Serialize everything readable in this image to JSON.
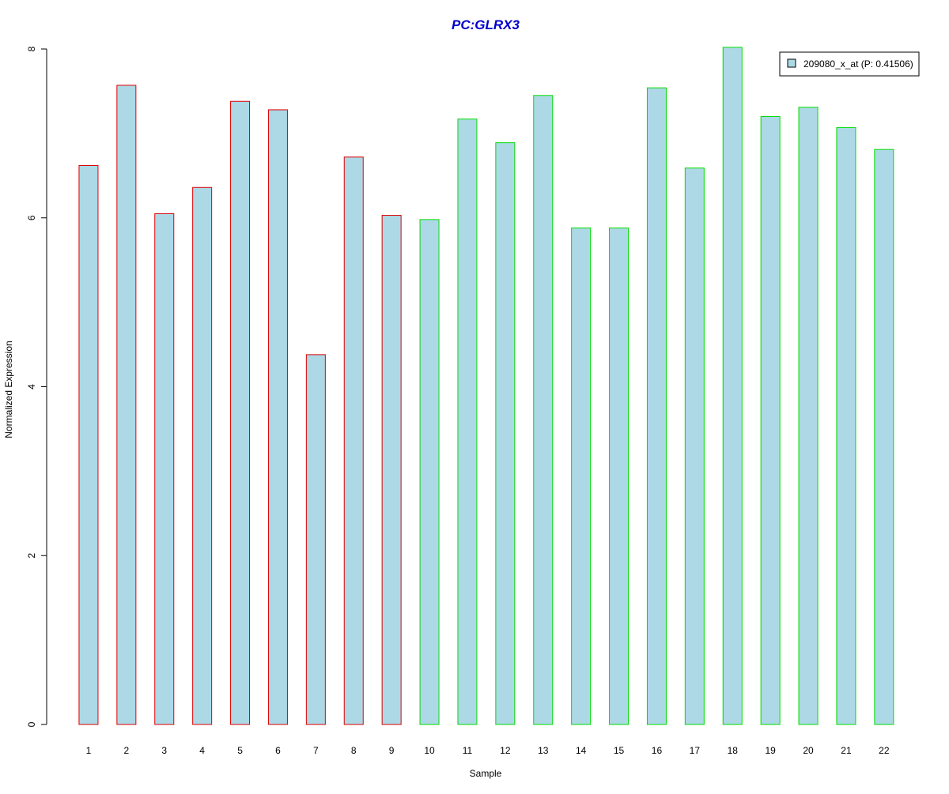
{
  "chart_data": {
    "type": "bar",
    "title": "PC:GLRX3",
    "xlabel": "Sample",
    "ylabel": "Normalized Expression",
    "categories": [
      "1",
      "2",
      "3",
      "4",
      "5",
      "6",
      "7",
      "8",
      "9",
      "10",
      "11",
      "12",
      "13",
      "14",
      "15",
      "16",
      "17",
      "18",
      "19",
      "20",
      "21",
      "22"
    ],
    "series": [
      {
        "name": "209080_x_at (P: 0.41506)",
        "values": [
          6.62,
          7.57,
          6.05,
          6.36,
          7.38,
          7.28,
          4.38,
          6.72,
          6.03,
          5.98,
          7.17,
          6.89,
          7.45,
          5.88,
          5.88,
          7.54,
          6.59,
          8.02,
          7.2,
          7.31,
          7.07,
          6.81
        ],
        "group": [
          "A",
          "A",
          "A",
          "A",
          "A",
          "A",
          "A",
          "A",
          "A",
          "B",
          "B",
          "B",
          "B",
          "B",
          "B",
          "B",
          "B",
          "B",
          "B",
          "B",
          "B",
          "B"
        ]
      }
    ],
    "ylim": [
      0,
      8
    ],
    "yticks": [
      0,
      2,
      4,
      6,
      8
    ],
    "grid": false,
    "legend_position": "top-right",
    "colors": {
      "title": "#0000cc",
      "bar_fill": "#add8e6",
      "border_group_a": "#dd0000",
      "border_group_b": "#00dd00",
      "axis": "#000000",
      "text": "#000000"
    }
  }
}
